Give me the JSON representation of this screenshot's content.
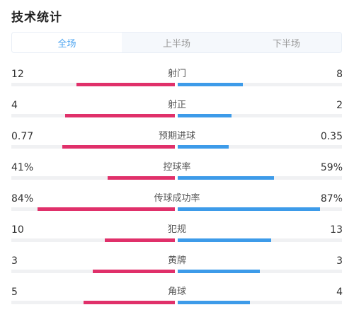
{
  "header": {
    "title": "技术统计"
  },
  "tabs": [
    {
      "label": "全场",
      "active": true
    },
    {
      "label": "上半场",
      "active": false
    },
    {
      "label": "下半场",
      "active": false
    }
  ],
  "colors": {
    "home_bar": "#e0306a",
    "away_bar": "#3d9be9",
    "active_tab": "#4aa3f0"
  },
  "stats": [
    {
      "label": "射门",
      "home": "12",
      "away": "8",
      "home_share": 0.6,
      "away_share": 0.4
    },
    {
      "label": "射正",
      "home": "4",
      "away": "2",
      "home_share": 0.67,
      "away_share": 0.33
    },
    {
      "label": "预期进球",
      "home": "0.77",
      "away": "0.35",
      "home_share": 0.69,
      "away_share": 0.31
    },
    {
      "label": "控球率",
      "home": "41%",
      "away": "59%",
      "home_share": 0.41,
      "away_share": 0.59
    },
    {
      "label": "传球成功率",
      "home": "84%",
      "away": "87%",
      "home_share": 0.84,
      "away_share": 0.87
    },
    {
      "label": "犯规",
      "home": "10",
      "away": "13",
      "home_share": 0.43,
      "away_share": 0.57
    },
    {
      "label": "黄牌",
      "home": "3",
      "away": "3",
      "home_share": 0.5,
      "away_share": 0.5
    },
    {
      "label": "角球",
      "home": "5",
      "away": "4",
      "home_share": 0.56,
      "away_share": 0.44
    }
  ]
}
